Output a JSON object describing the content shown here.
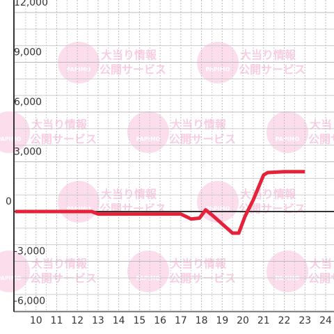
{
  "chart_data": {
    "type": "line",
    "x": [
      9,
      12.7,
      13,
      17,
      17.5,
      17.9,
      18.2,
      18.5,
      19.5,
      19.8,
      20.1,
      20.5,
      21,
      21.2,
      22,
      23
    ],
    "series": [
      {
        "color": "#e5223a",
        "values": [
          0,
          0,
          -150,
          -150,
          -450,
          -400,
          100,
          -200,
          -1300,
          -1300,
          -300,
          700,
          2200,
          2350,
          2400,
          2400
        ]
      }
    ],
    "xlim": [
      9,
      24
    ],
    "ylim": [
      -6000,
      12000
    ],
    "xticks": [
      10,
      11,
      12,
      13,
      14,
      15,
      16,
      17,
      18,
      19,
      20,
      21,
      22,
      23,
      24
    ],
    "xticks_minor": [
      9.5,
      10.5,
      11.5,
      12.5,
      13.5,
      14.5,
      15.5,
      16.5,
      17.5,
      18.5,
      19.5,
      20.5,
      21.5,
      22.5,
      23.5
    ],
    "yticks": [
      {
        "value": -6000,
        "label": "-6,000"
      },
      {
        "value": -3000,
        "label": "-3,000"
      },
      0,
      {
        "value": 3000,
        "label": "3,000"
      },
      {
        "value": 6000,
        "label": "6,000"
      },
      {
        "value": 9000,
        "label": "9,000"
      },
      {
        "value": 12000,
        "label": "12,000"
      }
    ],
    "yticks_minor": [
      -5000,
      -4000,
      -2000,
      -1000,
      1000,
      2000,
      4000,
      5000,
      7000,
      8000,
      10000,
      11000
    ],
    "grid": true,
    "watermark": [
      "大当り情報",
      "公開サービス",
      "PAPIMO"
    ]
  }
}
